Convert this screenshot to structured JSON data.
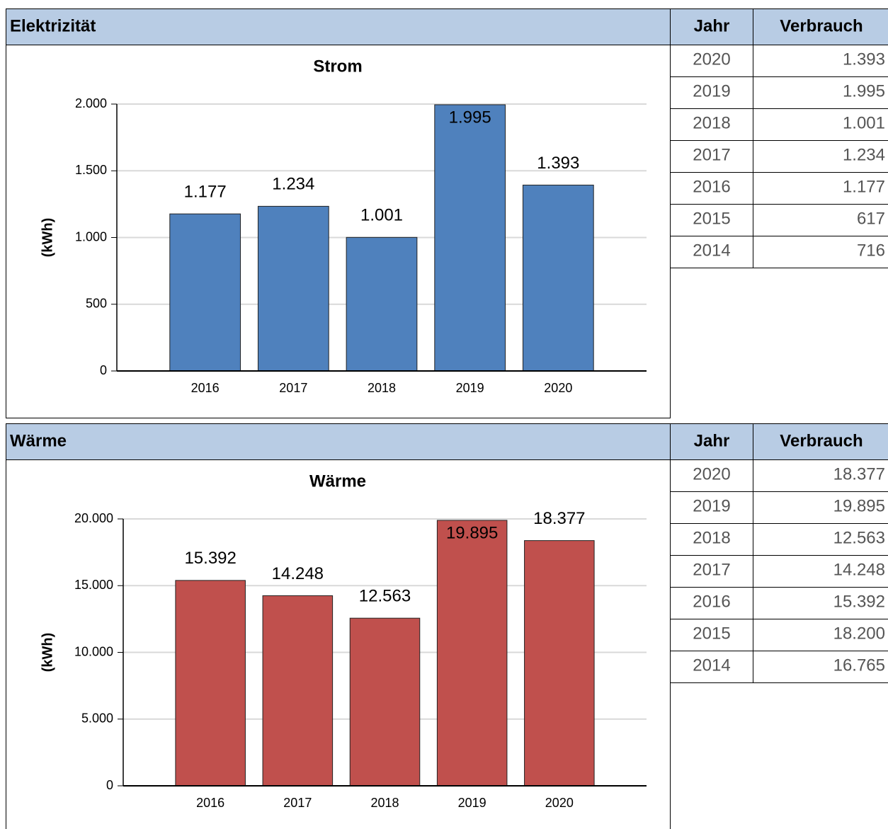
{
  "sections": [
    {
      "heading": "Elektrizität",
      "table": {
        "columns": [
          "Jahr",
          "Verbrauch"
        ],
        "rows": [
          [
            "2020",
            "1.393"
          ],
          [
            "2019",
            "1.995"
          ],
          [
            "2018",
            "1.001"
          ],
          [
            "2017",
            "1.234"
          ],
          [
            "2016",
            "1.177"
          ],
          [
            "2015",
            "617"
          ],
          [
            "2014",
            "716"
          ]
        ]
      }
    },
    {
      "heading": "Wärme",
      "table": {
        "columns": [
          "Jahr",
          "Verbrauch"
        ],
        "rows": [
          [
            "2020",
            "18.377"
          ],
          [
            "2019",
            "19.895"
          ],
          [
            "2018",
            "12.563"
          ],
          [
            "2017",
            "14.248"
          ],
          [
            "2016",
            "15.392"
          ],
          [
            "2015",
            "18.200"
          ],
          [
            "2014",
            "16.765"
          ]
        ]
      }
    }
  ],
  "chart_data": [
    {
      "type": "bar",
      "title": "Strom",
      "y_label": "(kWh)",
      "categories": [
        "2016",
        "2017",
        "2018",
        "2019",
        "2020"
      ],
      "values": [
        1177,
        1234,
        1001,
        1995,
        1393
      ],
      "value_labels": [
        "1.177",
        "1.234",
        "1.001",
        "1.995",
        "1.393"
      ],
      "color": "#4f81bd",
      "ylim": [
        0,
        2000
      ],
      "yticks": [
        0,
        500,
        {
          "value": 1000,
          "label": "1.000"
        },
        {
          "value": 1500,
          "label": "1.500"
        },
        {
          "value": 2000,
          "label": "2.000"
        }
      ],
      "grid": true
    },
    {
      "type": "bar",
      "title": "Wärme",
      "y_label": "(kWh)",
      "categories": [
        "2016",
        "2017",
        "2018",
        "2019",
        "2020"
      ],
      "values": [
        15392,
        14248,
        12563,
        19895,
        18377
      ],
      "value_labels": [
        "15.392",
        "14.248",
        "12.563",
        "19.895",
        "18.377"
      ],
      "color": "#c0504d",
      "ylim": [
        0,
        20000
      ],
      "yticks": [
        0,
        {
          "value": 5000,
          "label": "5.000"
        },
        {
          "value": 10000,
          "label": "10.000"
        },
        {
          "value": 15000,
          "label": "15.000"
        },
        {
          "value": 20000,
          "label": "20.000"
        }
      ],
      "grid": true
    }
  ]
}
